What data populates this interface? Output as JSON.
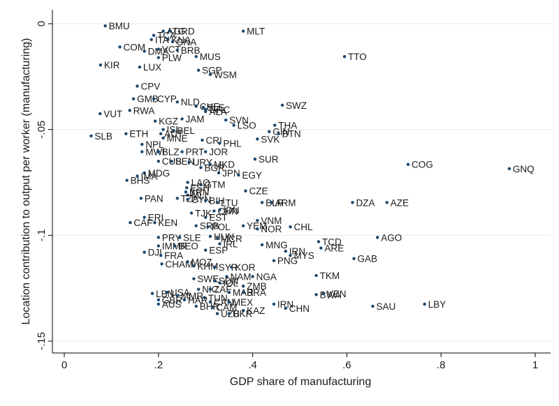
{
  "chart_data": {
    "type": "scatter",
    "xlabel": "GDP share of manufacturing",
    "ylabel": "Location contribution to output per worker (manufacturing)",
    "xlim": [
      0,
      1
    ],
    "ylim": [
      -0.15,
      0
    ],
    "xticks": [
      0,
      0.2,
      0.4,
      0.6,
      0.8,
      1
    ],
    "xtick_labels": [
      "0",
      ".2",
      ".4",
      ".6",
      ".8",
      "1"
    ],
    "yticks": [
      0,
      -0.05,
      -0.1,
      -0.15
    ],
    "ytick_labels": [
      "0",
      "-.05",
      "-.1",
      "-.15"
    ],
    "grid": "horizontal",
    "marker_color": "#1a476f",
    "points": [
      {
        "label": "BMU",
        "x": 0.087,
        "y": -0.001
      },
      {
        "label": "MLT",
        "x": 0.38,
        "y": -0.0035
      },
      {
        "label": "ATG",
        "x": 0.21,
        "y": -0.0035
      },
      {
        "label": "GRD",
        "x": 0.225,
        "y": -0.0035
      },
      {
        "label": "TCA",
        "x": 0.19,
        "y": -0.0055
      },
      {
        "label": "ITA",
        "x": 0.185,
        "y": -0.0075
      },
      {
        "label": "KNA",
        "x": 0.22,
        "y": -0.0075
      },
      {
        "label": "GNA",
        "x": 0.23,
        "y": -0.0085
      },
      {
        "label": "COM",
        "x": 0.118,
        "y": -0.011
      },
      {
        "label": "DMA",
        "x": 0.17,
        "y": -0.013
      },
      {
        "label": "VCT",
        "x": 0.2,
        "y": -0.012
      },
      {
        "label": "BRB",
        "x": 0.24,
        "y": -0.0125
      },
      {
        "label": "TTO",
        "x": 0.595,
        "y": -0.0155
      },
      {
        "label": "PLW",
        "x": 0.2,
        "y": -0.016
      },
      {
        "label": "MUS",
        "x": 0.28,
        "y": -0.0155
      },
      {
        "label": "KIR",
        "x": 0.077,
        "y": -0.0195
      },
      {
        "label": "LUX",
        "x": 0.16,
        "y": -0.0205
      },
      {
        "label": "SGP",
        "x": 0.285,
        "y": -0.022
      },
      {
        "label": "WSM",
        "x": 0.31,
        "y": -0.024
      },
      {
        "label": "CPV",
        "x": 0.155,
        "y": -0.0295
      },
      {
        "label": "GMB",
        "x": 0.147,
        "y": -0.0355
      },
      {
        "label": "CYP",
        "x": 0.19,
        "y": -0.0355
      },
      {
        "label": "NLD",
        "x": 0.24,
        "y": -0.037
      },
      {
        "label": "SWZ",
        "x": 0.463,
        "y": -0.0385
      },
      {
        "label": "CHE",
        "x": 0.28,
        "y": -0.039
      },
      {
        "label": "SLE",
        "x": 0.295,
        "y": -0.0395
      },
      {
        "label": "GRC",
        "x": 0.3,
        "y": -0.0405
      },
      {
        "label": "RWA",
        "x": 0.139,
        "y": -0.041
      },
      {
        "label": "VUT",
        "x": 0.076,
        "y": -0.0425
      },
      {
        "label": "ALA",
        "x": 0.3,
        "y": -0.0415
      },
      {
        "label": "JAM",
        "x": 0.25,
        "y": -0.045
      },
      {
        "label": "KGZ",
        "x": 0.193,
        "y": -0.046
      },
      {
        "label": "SVN",
        "x": 0.343,
        "y": -0.0455
      },
      {
        "label": "LSO",
        "x": 0.36,
        "y": -0.048
      },
      {
        "label": "THA",
        "x": 0.447,
        "y": -0.048
      },
      {
        "label": "ISL",
        "x": 0.21,
        "y": -0.05
      },
      {
        "label": "BEL",
        "x": 0.232,
        "y": -0.0505
      },
      {
        "label": "GIN",
        "x": 0.435,
        "y": -0.051
      },
      {
        "label": "SLB",
        "x": 0.057,
        "y": -0.053
      },
      {
        "label": "ETH",
        "x": 0.131,
        "y": -0.052
      },
      {
        "label": "AUT",
        "x": 0.205,
        "y": -0.052
      },
      {
        "label": "BTN",
        "x": 0.455,
        "y": -0.052
      },
      {
        "label": "MNE",
        "x": 0.21,
        "y": -0.054
      },
      {
        "label": "SVK",
        "x": 0.41,
        "y": -0.0545
      },
      {
        "label": "CRI",
        "x": 0.293,
        "y": -0.055
      },
      {
        "label": "PHL",
        "x": 0.33,
        "y": -0.0565
      },
      {
        "label": "NPL",
        "x": 0.165,
        "y": -0.057
      },
      {
        "label": "JOR",
        "x": 0.3,
        "y": -0.0605
      },
      {
        "label": "MWI",
        "x": 0.165,
        "y": -0.0605
      },
      {
        "label": "BLZ",
        "x": 0.2,
        "y": -0.0605
      },
      {
        "label": "PRT",
        "x": 0.25,
        "y": -0.0605
      },
      {
        "label": "SUR",
        "x": 0.405,
        "y": -0.064
      },
      {
        "label": "CUB",
        "x": 0.2,
        "y": -0.065
      },
      {
        "label": "SEN",
        "x": 0.228,
        "y": -0.065
      },
      {
        "label": "URY",
        "x": 0.265,
        "y": -0.0655
      },
      {
        "label": "BGR",
        "x": 0.29,
        "y": -0.068
      },
      {
        "label": "MKD",
        "x": 0.31,
        "y": -0.0665
      },
      {
        "label": "COG",
        "x": 0.73,
        "y": -0.0665
      },
      {
        "label": "GNQ",
        "x": 0.945,
        "y": -0.0685
      },
      {
        "label": "JPN",
        "x": 0.328,
        "y": -0.0705
      },
      {
        "label": "MDG",
        "x": 0.17,
        "y": -0.0705
      },
      {
        "label": "EGY",
        "x": 0.37,
        "y": -0.0715
      },
      {
        "label": "IMA",
        "x": 0.155,
        "y": -0.072
      },
      {
        "label": "BHS",
        "x": 0.133,
        "y": -0.074
      },
      {
        "label": "LAO",
        "x": 0.262,
        "y": -0.075
      },
      {
        "label": "GTM",
        "x": 0.29,
        "y": -0.076
      },
      {
        "label": "ESH",
        "x": 0.26,
        "y": -0.0775
      },
      {
        "label": "CZE",
        "x": 0.385,
        "y": -0.079
      },
      {
        "label": "BRN",
        "x": 0.258,
        "y": -0.0795
      },
      {
        "label": "MLI",
        "x": 0.262,
        "y": -0.081
      },
      {
        "label": "PAN",
        "x": 0.163,
        "y": -0.0825
      },
      {
        "label": "TZA",
        "x": 0.24,
        "y": -0.0825
      },
      {
        "label": "CYN",
        "x": 0.262,
        "y": -0.083
      },
      {
        "label": "BIH",
        "x": 0.3,
        "y": -0.0835
      },
      {
        "label": "LTU",
        "x": 0.325,
        "y": -0.0845
      },
      {
        "label": "BLR",
        "x": 0.42,
        "y": -0.0845
      },
      {
        "label": "ARM",
        "x": 0.44,
        "y": -0.0845
      },
      {
        "label": "DZA",
        "x": 0.612,
        "y": -0.0845
      },
      {
        "label": "AZE",
        "x": 0.685,
        "y": -0.0845
      },
      {
        "label": "CHN",
        "x": 0.318,
        "y": -0.0885
      },
      {
        "label": "IDN",
        "x": 0.33,
        "y": -0.088
      },
      {
        "label": "TJK",
        "x": 0.27,
        "y": -0.0895
      },
      {
        "label": "ERI",
        "x": 0.17,
        "y": -0.0915
      },
      {
        "label": "EST",
        "x": 0.3,
        "y": -0.0915
      },
      {
        "label": "CAF",
        "x": 0.14,
        "y": -0.094
      },
      {
        "label": "KEN",
        "x": 0.192,
        "y": -0.094
      },
      {
        "label": "VNM",
        "x": 0.41,
        "y": -0.093
      },
      {
        "label": "SRB",
        "x": 0.28,
        "y": -0.0955
      },
      {
        "label": "POL",
        "x": 0.305,
        "y": -0.096
      },
      {
        "label": "YEM",
        "x": 0.38,
        "y": -0.0955
      },
      {
        "label": "CHL",
        "x": 0.48,
        "y": -0.096
      },
      {
        "label": "NOR",
        "x": 0.41,
        "y": -0.097
      },
      {
        "label": "PRY",
        "x": 0.2,
        "y": -0.101
      },
      {
        "label": "SLE2",
        "x": 0.245,
        "y": -0.101
      },
      {
        "label": "HUN",
        "x": 0.31,
        "y": -0.1005
      },
      {
        "label": "MCR",
        "x": 0.325,
        "y": -0.1015
      },
      {
        "label": "AGO",
        "x": 0.665,
        "y": -0.101
      },
      {
        "label": "TCD",
        "x": 0.54,
        "y": -0.103
      },
      {
        "label": "IRL",
        "x": 0.33,
        "y": -0.104
      },
      {
        "label": "MNG",
        "x": 0.42,
        "y": -0.1045
      },
      {
        "label": "IMMR",
        "x": 0.2,
        "y": -0.105
      },
      {
        "label": "BEO",
        "x": 0.235,
        "y": -0.105
      },
      {
        "label": "ARE",
        "x": 0.545,
        "y": -0.106
      },
      {
        "label": "ESP",
        "x": 0.3,
        "y": -0.107
      },
      {
        "label": "DJI",
        "x": 0.17,
        "y": -0.108
      },
      {
        "label": "IRN",
        "x": 0.47,
        "y": -0.1075
      },
      {
        "label": "FRA",
        "x": 0.205,
        "y": -0.1095
      },
      {
        "label": "MYS",
        "x": 0.48,
        "y": -0.1095
      },
      {
        "label": "PNG",
        "x": 0.445,
        "y": -0.112
      },
      {
        "label": "GAB",
        "x": 0.615,
        "y": -0.111
      },
      {
        "label": "CHAM",
        "x": 0.207,
        "y": -0.1135
      },
      {
        "label": "MOZ",
        "x": 0.262,
        "y": -0.1125
      },
      {
        "label": "KHM",
        "x": 0.275,
        "y": -0.1145
      },
      {
        "label": "SYR",
        "x": 0.32,
        "y": -0.115
      },
      {
        "label": "KOR",
        "x": 0.355,
        "y": -0.115
      },
      {
        "label": "TKM",
        "x": 0.535,
        "y": -0.119
      },
      {
        "label": "NAM",
        "x": 0.345,
        "y": -0.1195
      },
      {
        "label": "NGA",
        "x": 0.4,
        "y": -0.1195
      },
      {
        "label": "SWE",
        "x": 0.275,
        "y": -0.1205
      },
      {
        "label": "SDN",
        "x": 0.32,
        "y": -0.1215
      },
      {
        "label": "IOL",
        "x": 0.33,
        "y": -0.1225
      },
      {
        "label": "ZMB",
        "x": 0.38,
        "y": -0.124
      },
      {
        "label": "NIC",
        "x": 0.285,
        "y": -0.1255
      },
      {
        "label": "ZAF",
        "x": 0.31,
        "y": -0.1255
      },
      {
        "label": "USA",
        "x": 0.218,
        "y": -0.127
      },
      {
        "label": "MAR",
        "x": 0.35,
        "y": -0.127
      },
      {
        "label": "BRA",
        "x": 0.38,
        "y": -0.127
      },
      {
        "label": "BWA",
        "x": 0.535,
        "y": -0.128
      },
      {
        "label": "VEN",
        "x": 0.55,
        "y": -0.1275
      },
      {
        "label": "LBN",
        "x": 0.187,
        "y": -0.1275
      },
      {
        "label": "MMR",
        "x": 0.24,
        "y": -0.1285
      },
      {
        "label": "TUN",
        "x": 0.298,
        "y": -0.1295
      },
      {
        "label": "GBR",
        "x": 0.2,
        "y": -0.1305
      },
      {
        "label": "HAR",
        "x": 0.255,
        "y": -0.1305
      },
      {
        "label": "CAN",
        "x": 0.31,
        "y": -0.1315
      },
      {
        "label": "MEX",
        "x": 0.35,
        "y": -0.1315
      },
      {
        "label": "IRN2",
        "x": 0.445,
        "y": -0.1325
      },
      {
        "label": "AUS",
        "x": 0.2,
        "y": -0.1325
      },
      {
        "label": "BHR",
        "x": 0.28,
        "y": -0.1335
      },
      {
        "label": "CAM",
        "x": 0.315,
        "y": -0.134
      },
      {
        "label": "SAU",
        "x": 0.655,
        "y": -0.1335
      },
      {
        "label": "LBY",
        "x": 0.765,
        "y": -0.1325
      },
      {
        "label": "KAZ",
        "x": 0.38,
        "y": -0.1355
      },
      {
        "label": "CHN2",
        "x": 0.47,
        "y": -0.1345
      },
      {
        "label": "UZB",
        "x": 0.325,
        "y": -0.137
      },
      {
        "label": "UKR",
        "x": 0.35,
        "y": -0.137
      }
    ]
  }
}
